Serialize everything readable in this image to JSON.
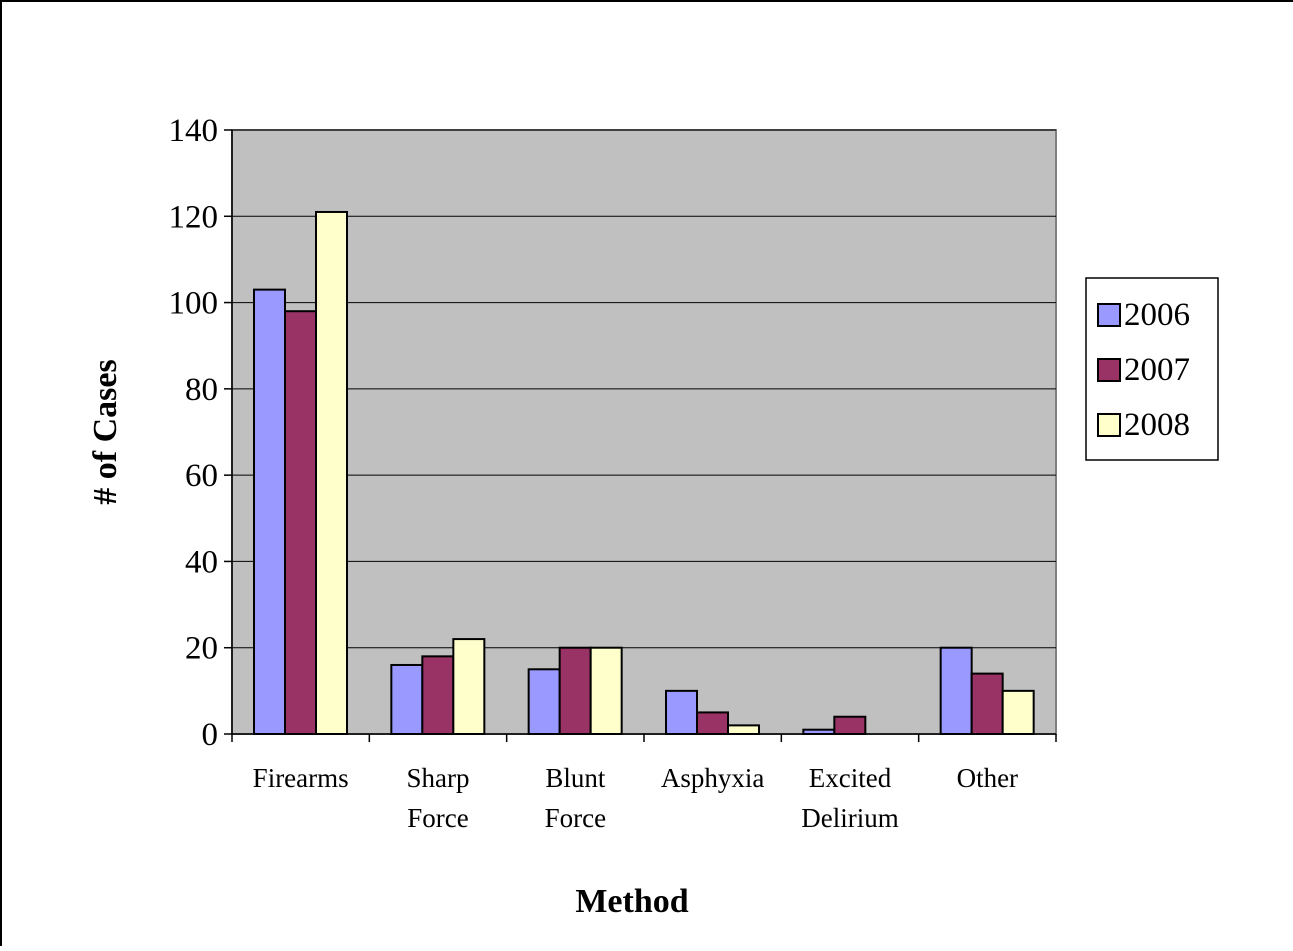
{
  "chart_data": {
    "type": "bar",
    "title": "",
    "xlabel": "Method",
    "ylabel": "# of Cases",
    "ylim": [
      0,
      140
    ],
    "ytick_step": 20,
    "grid": true,
    "legend_position": "right",
    "categories": [
      [
        "Firearms"
      ],
      [
        "Sharp",
        "Force"
      ],
      [
        "Blunt",
        "Force"
      ],
      [
        "Asphyxia"
      ],
      [
        "Excited",
        "Delirium"
      ],
      [
        "Other"
      ]
    ],
    "series": [
      {
        "name": "2006",
        "color": "#9999ff",
        "values": [
          103,
          16,
          15,
          10,
          1,
          20
        ]
      },
      {
        "name": "2007",
        "color": "#993366",
        "values": [
          98,
          18,
          20,
          5,
          4,
          14
        ]
      },
      {
        "name": "2008",
        "color": "#ffffcc",
        "values": [
          121,
          22,
          20,
          2,
          0,
          10
        ]
      }
    ],
    "plot_background": "#c0c0c0"
  }
}
